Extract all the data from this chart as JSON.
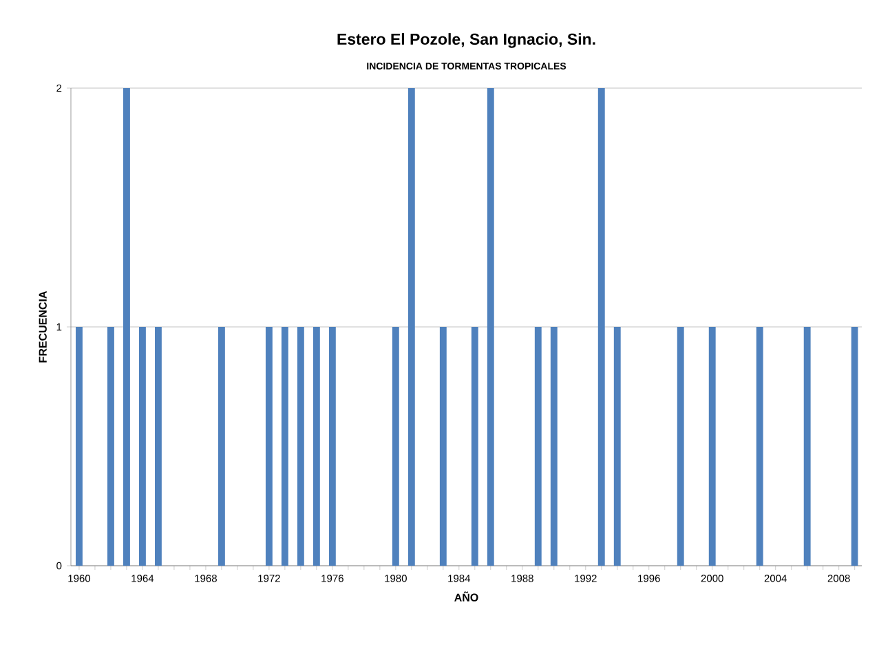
{
  "chart_data": {
    "type": "bar",
    "title": "Estero El Pozole, San Ignacio, Sin.",
    "subtitle": "INCIDENCIA DE TORMENTAS TROPICALES",
    "xlabel": "AÑO",
    "ylabel": "FRECUENCIA",
    "categories": [
      "1960",
      null,
      null,
      null,
      "1964",
      null,
      null,
      null,
      "1968",
      null,
      null,
      null,
      "1972",
      null,
      null,
      null,
      "1976",
      null,
      null,
      null,
      "1980",
      null,
      null,
      null,
      "1984",
      null,
      null,
      null,
      "1988",
      null,
      null,
      null,
      "1992",
      null,
      null,
      null,
      "1996",
      null,
      null,
      null,
      "2000",
      null,
      null,
      null,
      "2004",
      null,
      null,
      null,
      "2008",
      null
    ],
    "values": [
      1,
      0,
      1,
      2,
      1,
      1,
      0,
      0,
      0,
      1,
      0,
      0,
      1,
      1,
      1,
      1,
      1,
      0,
      0,
      0,
      1,
      2,
      0,
      1,
      0,
      1,
      2,
      0,
      0,
      1,
      1,
      0,
      0,
      2,
      1,
      0,
      0,
      0,
      1,
      0,
      1,
      0,
      0,
      1,
      0,
      0,
      1,
      0,
      0,
      1
    ],
    "color": "#4f81bd",
    "ylim": [
      0,
      2
    ],
    "yticks": [
      0,
      1,
      2
    ],
    "grid": "y"
  }
}
